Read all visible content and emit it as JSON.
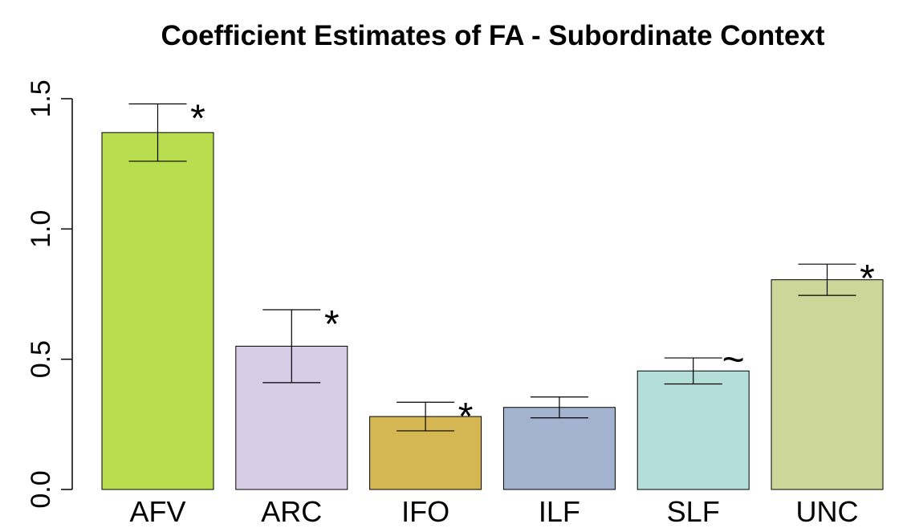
{
  "chart_data": {
    "type": "bar",
    "title": "Coefficient Estimates of FA - Subordinate Context",
    "xlabel": "",
    "ylabel": "",
    "ylim": [
      0,
      1.5
    ],
    "yticks": [
      "0.0",
      "0.5",
      "1.0",
      "1.5"
    ],
    "ytick_values": [
      0,
      0.5,
      1.0,
      1.5
    ],
    "categories": [
      "AFV",
      "ARC",
      "IFO",
      "ILF",
      "SLF",
      "UNC"
    ],
    "values": [
      1.37,
      0.55,
      0.28,
      0.315,
      0.455,
      0.805
    ],
    "error_low": [
      1.26,
      0.41,
      0.225,
      0.275,
      0.405,
      0.745
    ],
    "error_high": [
      1.48,
      0.69,
      0.335,
      0.355,
      0.505,
      0.865
    ],
    "significance": [
      "*",
      "*",
      "*",
      "",
      "~",
      "*"
    ],
    "colors": [
      "#B8DE4F",
      "#D9CCE6",
      "#D4B753",
      "#A3B3CF",
      "#B3DED9",
      "#CCD699"
    ],
    "grid": false,
    "legend": "none"
  }
}
